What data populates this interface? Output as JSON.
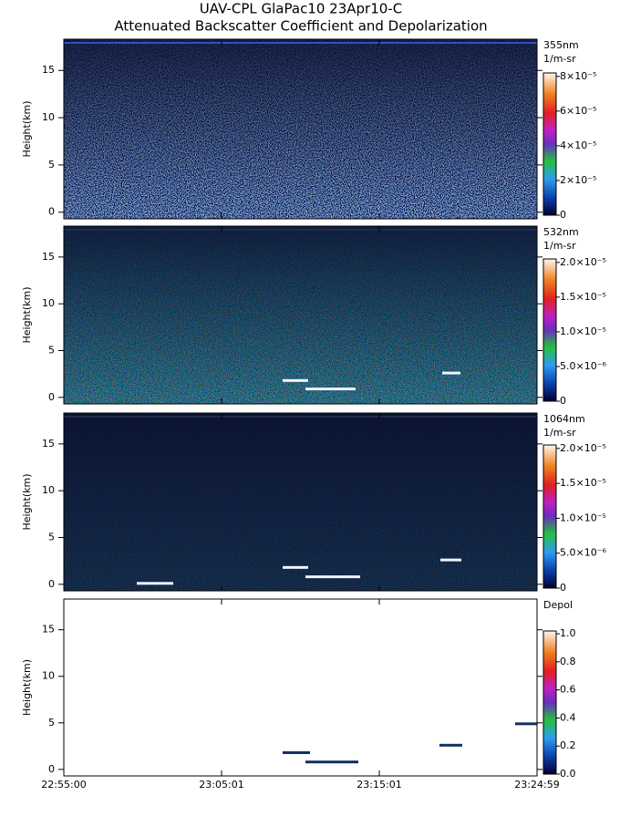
{
  "title": [
    "UAV-CPL GlaPac10 23Apr10-C",
    "Attenuated Backscatter Coefficient and Depolarization"
  ],
  "chart_data": [
    {
      "type": "heatmap",
      "ylabel": "Height(km)",
      "ylim": [
        -0.7,
        18.3
      ],
      "yticks": [
        0,
        5,
        10,
        15
      ],
      "colorbar": {
        "labels": [
          "355nm",
          "1/m-sr"
        ],
        "clim": [
          0,
          8.2e-05
        ],
        "ticks": [
          {
            "value": 0,
            "label": "0"
          },
          {
            "value": 2e-05,
            "label": "2×10⁻⁵"
          },
          {
            "value": 4e-05,
            "label": "4×10⁻⁵"
          },
          {
            "value": 6e-05,
            "label": "6×10⁻⁵"
          },
          {
            "value": 8e-05,
            "label": "8×10⁻⁵"
          }
        ]
      }
    },
    {
      "type": "heatmap",
      "ylabel": "Height(km)",
      "ylim": [
        -0.7,
        18.3
      ],
      "yticks": [
        0,
        5,
        10,
        15
      ],
      "colorbar": {
        "labels": [
          "532nm",
          "1/m-sr"
        ],
        "clim": [
          0,
          2.05e-05
        ],
        "ticks": [
          {
            "value": 0,
            "label": "0"
          },
          {
            "value": 5e-06,
            "label": "5.0×10⁻⁶"
          },
          {
            "value": 1e-05,
            "label": "1.0×10⁻⁵"
          },
          {
            "value": 1.5e-05,
            "label": "1.5×10⁻⁵"
          },
          {
            "value": 2e-05,
            "label": "2.0×10⁻⁵"
          }
        ]
      }
    },
    {
      "type": "heatmap",
      "ylabel": "Height(km)",
      "ylim": [
        -0.7,
        18.3
      ],
      "yticks": [
        0,
        5,
        10,
        15
      ],
      "colorbar": {
        "labels": [
          "1064nm",
          "1/m-sr"
        ],
        "clim": [
          0,
          2.05e-05
        ],
        "ticks": [
          {
            "value": 0,
            "label": "0"
          },
          {
            "value": 5e-06,
            "label": "5.0×10⁻⁶"
          },
          {
            "value": 1e-05,
            "label": "1.0×10⁻⁵"
          },
          {
            "value": 1.5e-05,
            "label": "1.5×10⁻⁵"
          },
          {
            "value": 2e-05,
            "label": "2.0×10⁻⁵"
          }
        ]
      }
    },
    {
      "type": "heatmap",
      "ylabel": "Height(km)",
      "ylim": [
        -0.7,
        18.3
      ],
      "yticks": [
        0,
        5,
        10,
        15
      ],
      "colorbar": {
        "labels": [
          "Depol"
        ],
        "clim": [
          0,
          1.02
        ],
        "ticks": [
          {
            "value": 0,
            "label": "0.0"
          },
          0.2,
          0.4,
          0.6,
          0.8,
          {
            "value": 1,
            "label": "1.0"
          }
        ]
      },
      "categories": [
        "22:55:00",
        "23:05:01",
        "23:15:01",
        "23:24:59"
      ]
    }
  ]
}
